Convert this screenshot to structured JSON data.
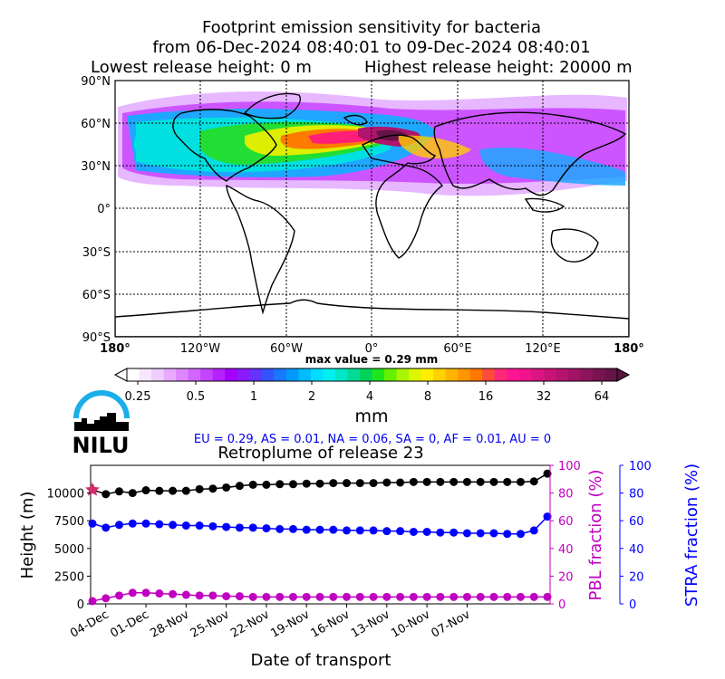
{
  "title": {
    "line1": "Footprint emission sensitivity for bacteria",
    "line2": "from 06-Dec-2024 08:40:01 to 09-Dec-2024 08:40:01",
    "line3_left": "Lowest release height: 0 m",
    "line3_right": "Highest release height: 20000 m"
  },
  "map": {
    "lat_ticks": [
      "90°N",
      "60°N",
      "30°N",
      "0°",
      "30°S",
      "60°S",
      "90°S"
    ],
    "lon_ticks": [
      "180°",
      "120°W",
      "60°W",
      "0°",
      "60°E",
      "120°E",
      "180°"
    ],
    "max_value_label": "max value = 0.29 mm"
  },
  "colorbar": {
    "tick_labels": [
      "0.25",
      "0.5",
      "1",
      "2",
      "4",
      "8",
      "16",
      "32",
      "64"
    ],
    "unit": "mm",
    "colors": [
      "#ffffff",
      "#f8e6ff",
      "#f0ccff",
      "#e7aaff",
      "#dd88ff",
      "#d066ff",
      "#c344ff",
      "#b522ff",
      "#a500ff",
      "#8c1aff",
      "#6633ff",
      "#3355ff",
      "#1a77ff",
      "#0099ff",
      "#00bbff",
      "#00ddff",
      "#00f0f0",
      "#00e6c8",
      "#00dc96",
      "#00d25a",
      "#1ee61e",
      "#66f000",
      "#aaf500",
      "#ddf500",
      "#ffee00",
      "#ffd200",
      "#ffb400",
      "#ff9600",
      "#ff7800",
      "#ff4b3c",
      "#ff2878",
      "#ff1496",
      "#f0148c",
      "#dc1482",
      "#c81478",
      "#b4146e",
      "#a01464",
      "#8c145a",
      "#781450",
      "#641446"
    ]
  },
  "logo": {
    "text": "NILU"
  },
  "fractions_text": "EU = 0.29,  AS = 0.01,  NA = 0.06,  SA = 0,  AF = 0.01,  AU = 0",
  "chart_data": {
    "type": "line",
    "title": "Retroplume of release 23",
    "xlabel": "Date of transport",
    "ylabel_left": "Height (m)",
    "ylabel_right1": "PBL fraction (%)",
    "ylabel_right2": "STRA fraction (%)",
    "x_tick_labels": [
      "04-Dec",
      "01-Dec",
      "28-Nov",
      "25-Nov",
      "22-Nov",
      "19-Nov",
      "16-Nov",
      "13-Nov",
      "10-Nov",
      "07-Nov"
    ],
    "y_left_ticks": [
      "0",
      "2500",
      "5000",
      "7500",
      "10000"
    ],
    "y_right_ticks": [
      "0",
      "20",
      "40",
      "60",
      "80",
      "100"
    ],
    "ylim_left": [
      0,
      12500
    ],
    "ylim_right": [
      0,
      100
    ],
    "series": [
      {
        "label": "height",
        "color": "#000000",
        "values": [
          10300,
          9900,
          10150,
          10000,
          10250,
          10200,
          10200,
          10200,
          10350,
          10400,
          10500,
          10650,
          10750,
          10750,
          10800,
          10800,
          10850,
          10850,
          10900,
          10900,
          10900,
          10900,
          10950,
          10950,
          11000,
          11000,
          11000,
          11000,
          11000,
          11000,
          11000,
          11000,
          11000,
          11050,
          11750
        ]
      },
      {
        "label": "pbl",
        "color": "#c000c0",
        "values": [
          2,
          4,
          6,
          8,
          8,
          7.5,
          7,
          6.5,
          6,
          6,
          5.5,
          5.5,
          5,
          5,
          5,
          5,
          5,
          5,
          5,
          5,
          5,
          5,
          5,
          5,
          5,
          5,
          5,
          5,
          5,
          5,
          5,
          5,
          5,
          5,
          5
        ]
      },
      {
        "label": "stra",
        "color": "#0000ff",
        "values": [
          58,
          55,
          57,
          58,
          58,
          57.5,
          57,
          56.5,
          56.5,
          56,
          55.5,
          55,
          55,
          54.5,
          54,
          54,
          53.5,
          53.5,
          53.5,
          53,
          53,
          53,
          52.5,
          52.5,
          52,
          52,
          51.5,
          51.5,
          51,
          51,
          51,
          50.5,
          50.5,
          53,
          63
        ]
      }
    ]
  }
}
